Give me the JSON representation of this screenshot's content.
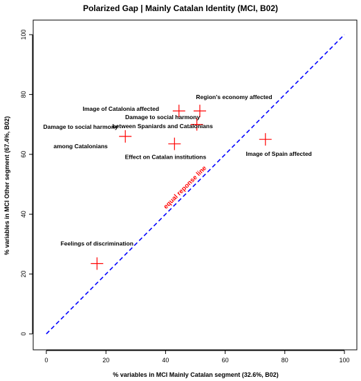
{
  "chart_data": {
    "type": "scatter",
    "title": "Polarized Gap | Mainly Catalan Identity (MCI, B02)",
    "xlabel": "% variables in MCI Mainly Catalan segment (32.6%, B02)",
    "ylabel": "% variables in MCI Other segment (67.4%, B02)",
    "xlim": [
      0,
      100
    ],
    "ylim": [
      0,
      100
    ],
    "xticks": [
      "0",
      "20",
      "40",
      "60",
      "80",
      "100"
    ],
    "yticks": [
      "0",
      "20",
      "40",
      "60",
      "80",
      "100"
    ],
    "grid": false,
    "marker_color": "#ff0000",
    "reference_line": {
      "label": "equal reponse line",
      "from": [
        0,
        0
      ],
      "to": [
        100,
        100
      ],
      "color": "#0000ff",
      "label_color": "#ff0000"
    },
    "points": [
      {
        "x": 17,
        "y": 23.5,
        "label_lines": [
          "Feelings of discrimination"
        ],
        "label_x": 17,
        "label_y": 29.5,
        "label_anchor": "middle"
      },
      {
        "x": 26.5,
        "y": 66,
        "label_lines": [
          "Damage to social harmony",
          "among Catalonians"
        ],
        "label_x": 11.5,
        "label_y": 68.5,
        "label_anchor": "middle"
      },
      {
        "x": 43,
        "y": 63.5,
        "label_lines": [
          "Effect on Catalan institutions"
        ],
        "label_x": 40,
        "label_y": 58.5,
        "label_anchor": "middle"
      },
      {
        "x": 44.5,
        "y": 74.5,
        "label_lines": [
          "Image of Catalonia affected"
        ],
        "label_x": 25,
        "label_y": 74.5,
        "label_anchor": "middle"
      },
      {
        "x": 50.5,
        "y": 70,
        "label_lines": [
          "Damage to social harmony",
          "between Spaniards and Catalonians"
        ],
        "label_x": 39,
        "label_y": 71.8,
        "label_anchor": "middle"
      },
      {
        "x": 51.5,
        "y": 74.5,
        "label_lines": [
          "Region's economy affected"
        ],
        "label_x": 63,
        "label_y": 78.5,
        "label_anchor": "middle"
      },
      {
        "x": 73.5,
        "y": 65,
        "label_lines": [
          "Image of Spain affected"
        ],
        "label_x": 78,
        "label_y": 59.5,
        "label_anchor": "middle"
      }
    ]
  }
}
